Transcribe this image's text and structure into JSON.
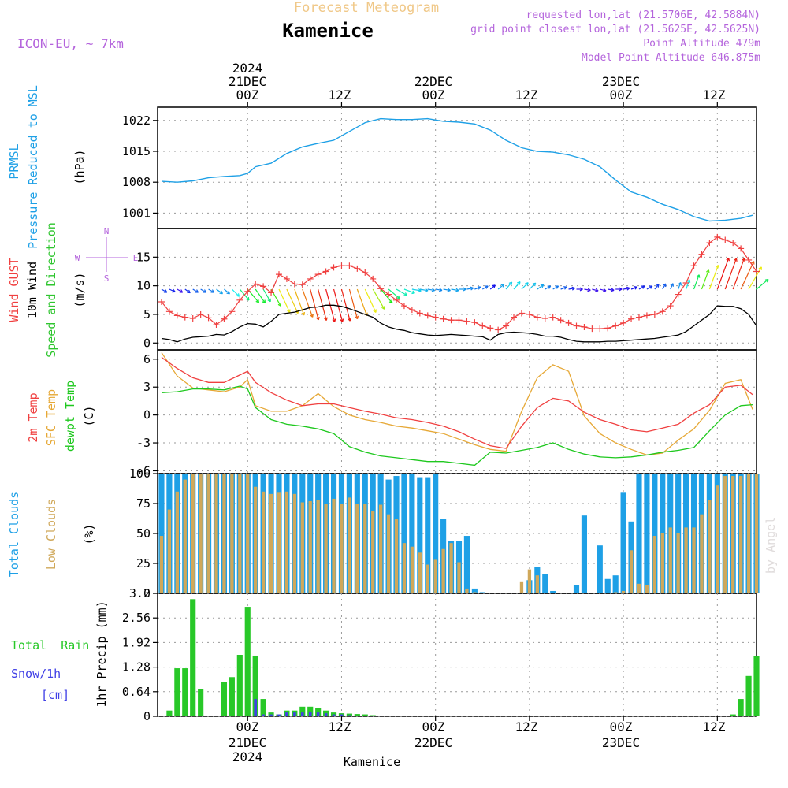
{
  "header": {
    "title_faded": "Forecast Meteogram",
    "location": "Kamenice",
    "model": "ICON-EU, ~ 7km",
    "requested": "requested lon,lat (21.5706E, 42.5884N)",
    "grid_point": "grid point closest lon,lat (21.5625E, 42.5625N)",
    "point_altitude": "Point Altitude 479m",
    "model_altitude": "Model Point Altitude 646.875m",
    "footer_location": "Kamenice",
    "watermark": "by Angel"
  },
  "time_axis": {
    "year": "2024",
    "ticks": [
      {
        "h": 0,
        "label": "00Z",
        "date": "21DEC"
      },
      {
        "h": 12,
        "label": "12Z",
        "date": ""
      },
      {
        "h": 24,
        "label": "00Z",
        "date": "22DEC"
      },
      {
        "h": 36,
        "label": "12Z",
        "date": ""
      },
      {
        "h": 48,
        "label": "00Z",
        "date": "23DEC"
      },
      {
        "h": 60,
        "label": "12Z",
        "date": ""
      }
    ],
    "range_hours": [
      -11.5,
      65
    ]
  },
  "colors": {
    "pressure": "#1ea0e6",
    "gust": "#f04040",
    "wind": "#000000",
    "direction": "#2ec52e",
    "temp2m": "#f04040",
    "sfc_temp": "#e6a836",
    "dewpt": "#1ec81e",
    "total_clouds": "#1ea0e6",
    "low_clouds": "#d0a85a",
    "rain": "#28c828",
    "snow": "#4040e6",
    "header_purple": "#b464dc",
    "title_faded": "#f0c888"
  },
  "panels": {
    "pressure": {
      "labels": [
        "PRMSL",
        "Pressure Reduced to MSL"
      ],
      "unit": "(hPa)",
      "yticks": [
        "1001",
        "1008",
        "1015",
        "1022"
      ]
    },
    "wind": {
      "labels": [
        "Wind GUST",
        "10m Wind",
        "Speed and Direction"
      ],
      "unit": "(m/s)",
      "yticks": [
        "0",
        "5",
        "10",
        "15"
      ],
      "compass": {
        "n": "N",
        "s": "S",
        "w": "W",
        "e": "E"
      }
    },
    "temp": {
      "labels": [
        "2m Temp",
        "SFC Temp",
        "dewpt Temp"
      ],
      "unit": "(C)",
      "yticks": [
        "-6",
        "-3",
        "0",
        "3",
        "6"
      ]
    },
    "clouds": {
      "labels": [
        "Total Clouds",
        "Low Clouds"
      ],
      "unit": "(%)",
      "yticks": [
        "0",
        "25",
        "50",
        "75",
        "100"
      ]
    },
    "precip": {
      "labels": [
        "Total  Rain",
        "Snow/1h",
        "[cm]"
      ],
      "unit": "1hr Precip (mm)",
      "yticks": [
        "0",
        "0.64",
        "1.28",
        "1.92",
        "2.56",
        "3.2"
      ]
    }
  },
  "chart_data": [
    {
      "type": "line",
      "title": "PRMSL Pressure Reduced to MSL",
      "ylabel": "(hPa)",
      "ylim": [
        997.5,
        1025
      ],
      "x_hours": [
        -11,
        -9,
        -7,
        -5,
        -3,
        -1,
        0,
        1,
        3,
        5,
        7,
        9,
        11,
        13,
        15,
        17,
        19,
        21,
        23,
        25,
        27,
        29,
        31,
        33,
        35,
        37,
        39,
        41,
        43,
        45,
        47,
        49,
        51,
        53,
        55,
        57,
        59,
        61,
        63,
        64.5
      ],
      "series": [
        {
          "name": "PRMSL",
          "values": [
            1008.2,
            1008.0,
            1008.3,
            1009.0,
            1009.3,
            1009.5,
            1010.0,
            1011.5,
            1012.3,
            1014.5,
            1016.0,
            1016.8,
            1017.5,
            1019.5,
            1021.5,
            1022.4,
            1022.2,
            1022.2,
            1022.4,
            1021.8,
            1021.6,
            1021.2,
            1019.8,
            1017.5,
            1015.8,
            1015.0,
            1014.8,
            1014.2,
            1013.2,
            1011.5,
            1008.5,
            1005.8,
            1004.6,
            1003.0,
            1001.8,
            1000.2,
            999.2,
            999.4,
            999.8,
            1000.5
          ]
        }
      ]
    },
    {
      "type": "line",
      "title": "Wind GUST / 10m Wind Speed and Direction",
      "ylabel": "(m/s)",
      "ylim": [
        -1.2,
        20
      ],
      "x_hours": [
        -11,
        -10,
        -9,
        -8,
        -7,
        -6,
        -5,
        -4,
        -3,
        -2,
        -1,
        0,
        1,
        2,
        3,
        4,
        5,
        6,
        7,
        8,
        9,
        10,
        11,
        12,
        13,
        14,
        15,
        16,
        17,
        18,
        19,
        20,
        21,
        22,
        23,
        24,
        25,
        26,
        27,
        28,
        29,
        30,
        31,
        32,
        33,
        34,
        35,
        36,
        37,
        38,
        39,
        40,
        41,
        42,
        43,
        44,
        45,
        46,
        47,
        48,
        49,
        50,
        51,
        52,
        53,
        54,
        55,
        56,
        57,
        58,
        59,
        60,
        61,
        62,
        63,
        64,
        65
      ],
      "series": [
        {
          "name": "Wind GUST",
          "values": [
            7.2,
            5.5,
            4.8,
            4.5,
            4.3,
            5.0,
            4.4,
            3.2,
            4.2,
            5.5,
            7.5,
            9.0,
            10.3,
            9.9,
            8.8,
            12.0,
            11.2,
            10.3,
            10.2,
            11.2,
            12.0,
            12.5,
            13.2,
            13.5,
            13.5,
            13.0,
            12.3,
            11.2,
            9.5,
            8.5,
            7.5,
            6.5,
            5.8,
            5.2,
            4.8,
            4.5,
            4.2,
            4.0,
            4.0,
            3.8,
            3.6,
            3.0,
            2.6,
            2.3,
            3.0,
            4.5,
            5.2,
            5.0,
            4.5,
            4.3,
            4.5,
            4.0,
            3.5,
            3.0,
            2.8,
            2.5,
            2.5,
            2.6,
            3.0,
            3.5,
            4.2,
            4.5,
            4.8,
            5.0,
            5.5,
            6.5,
            8.5,
            10.5,
            13.5,
            15.5,
            17.5,
            18.5,
            18.0,
            17.5,
            16.5,
            14.5,
            12.5
          ]
        },
        {
          "name": "10m Wind",
          "values": [
            0.8,
            0.6,
            0.2,
            0.7,
            1.0,
            1.1,
            1.2,
            1.5,
            1.4,
            2.0,
            2.8,
            3.4,
            3.3,
            2.8,
            3.8,
            5.0,
            5.2,
            5.4,
            5.8,
            6.2,
            6.3,
            6.6,
            6.6,
            6.4,
            6.0,
            5.5,
            5.0,
            4.5,
            3.5,
            2.8,
            2.4,
            2.2,
            1.8,
            1.6,
            1.4,
            1.3,
            1.4,
            1.5,
            1.4,
            1.3,
            1.2,
            1.1,
            0.5,
            1.5,
            1.8,
            1.9,
            1.8,
            1.7,
            1.5,
            1.2,
            1.2,
            1.0,
            0.6,
            0.3,
            0.2,
            0.2,
            0.2,
            0.3,
            0.3,
            0.4,
            0.5,
            0.6,
            0.7,
            0.8,
            1.0,
            1.2,
            1.4,
            2.0,
            3.0,
            4.0,
            5.0,
            6.5,
            6.4,
            6.4,
            6.0,
            5.0,
            3.0
          ]
        },
        {
          "name": "Speed and Direction",
          "direction_deg": [
            300,
            295,
            300,
            305,
            300,
            300,
            300,
            305,
            310,
            315,
            320,
            320,
            325,
            330,
            330,
            335,
            335,
            340,
            340,
            345,
            345,
            345,
            345,
            345,
            345,
            340,
            335,
            330,
            320,
            310,
            300,
            290,
            280,
            280,
            280,
            280,
            280,
            280,
            270,
            260,
            250,
            240,
            230,
            230,
            220,
            220,
            225,
            225,
            235,
            240,
            240,
            250,
            260,
            270,
            280,
            285,
            285,
            280,
            270,
            260,
            250,
            240,
            240,
            220,
            210,
            205,
            200,
            200,
            200,
            200,
            200,
            200,
            200,
            200,
            205,
            210,
            230
          ]
        }
      ]
    },
    {
      "type": "line",
      "title": "2m Temp / SFC Temp / dewpt Temp",
      "ylabel": "(C)",
      "ylim": [
        -6.3,
        7
      ],
      "x_hours": [
        -11,
        -9,
        -7,
        -5,
        -3,
        -1,
        0,
        1,
        3,
        5,
        7,
        9,
        11,
        13,
        15,
        17,
        19,
        21,
        23,
        25,
        27,
        29,
        31,
        33,
        35,
        37,
        39,
        41,
        43,
        45,
        47,
        49,
        51,
        53,
        55,
        57,
        59,
        61,
        63,
        64.5
      ],
      "series": [
        {
          "name": "2m Temp",
          "values": [
            6.2,
            5.0,
            4.0,
            3.5,
            3.5,
            4.3,
            4.7,
            3.5,
            2.4,
            1.6,
            1.0,
            1.2,
            1.2,
            0.8,
            0.4,
            0.1,
            -0.3,
            -0.5,
            -0.8,
            -1.2,
            -1.8,
            -2.6,
            -3.3,
            -3.6,
            -1.2,
            0.8,
            1.8,
            1.5,
            0.3,
            -0.5,
            -1.0,
            -1.6,
            -1.8,
            -1.4,
            -1.0,
            0.2,
            1.1,
            3.0,
            3.2,
            2.2
          ]
        },
        {
          "name": "SFC Temp",
          "values": [
            6.7,
            4.2,
            2.9,
            2.7,
            2.5,
            3.0,
            3.8,
            1.0,
            0.4,
            0.4,
            1.0,
            2.3,
            0.9,
            0.0,
            -0.5,
            -0.8,
            -1.2,
            -1.4,
            -1.7,
            -2.0,
            -2.6,
            -3.2,
            -3.7,
            -3.9,
            0.4,
            4.0,
            5.4,
            4.7,
            -0.1,
            -2.0,
            -3.0,
            -3.7,
            -4.3,
            -4.1,
            -2.7,
            -1.5,
            0.5,
            3.4,
            3.8,
            0.6
          ]
        },
        {
          "name": "dewpt Temp",
          "values": [
            2.4,
            2.5,
            2.8,
            2.8,
            2.7,
            3.1,
            2.8,
            0.8,
            -0.5,
            -1.0,
            -1.2,
            -1.5,
            -2.0,
            -3.4,
            -4.0,
            -4.4,
            -4.6,
            -4.8,
            -5.0,
            -5.0,
            -5.2,
            -5.4,
            -4.0,
            -4.1,
            -3.8,
            -3.5,
            -3.0,
            -3.7,
            -4.2,
            -4.5,
            -4.6,
            -4.5,
            -4.3,
            -4.0,
            -3.8,
            -3.5,
            -1.7,
            0.0,
            1.0,
            1.1
          ]
        }
      ]
    },
    {
      "type": "bar",
      "title": "Total Clouds / Low Clouds",
      "ylabel": "(%)",
      "ylim": [
        0,
        100
      ],
      "x_hours": [
        -11,
        -10,
        -9,
        -8,
        -7,
        -6,
        -5,
        -4,
        -3,
        -2,
        -1,
        0,
        1,
        2,
        3,
        4,
        5,
        6,
        7,
        8,
        9,
        10,
        11,
        12,
        13,
        14,
        15,
        16,
        17,
        18,
        19,
        20,
        21,
        22,
        23,
        24,
        25,
        26,
        27,
        28,
        29,
        30,
        31,
        32,
        33,
        34,
        35,
        36,
        37,
        38,
        39,
        40,
        41,
        42,
        43,
        44,
        45,
        46,
        47,
        48,
        49,
        50,
        51,
        52,
        53,
        54,
        55,
        56,
        57,
        58,
        59,
        60,
        61,
        62,
        63,
        64,
        65
      ],
      "series": [
        {
          "name": "Total Clouds",
          "values": [
            100,
            100,
            100,
            100,
            100,
            100,
            100,
            100,
            100,
            100,
            100,
            100,
            100,
            100,
            100,
            100,
            100,
            100,
            100,
            100,
            100,
            100,
            100,
            100,
            100,
            100,
            100,
            100,
            100,
            95,
            98,
            100,
            100,
            97,
            97,
            100,
            62,
            44,
            44,
            48,
            4,
            1,
            0,
            0,
            0,
            0,
            0,
            11,
            22,
            16,
            2,
            0,
            0,
            7,
            65,
            0,
            40,
            12,
            15,
            84,
            60,
            100,
            100,
            100,
            100,
            100,
            100,
            100,
            100,
            100,
            100,
            100,
            100,
            100,
            100,
            100,
            100
          ]
        },
        {
          "name": "Low Clouds",
          "values": [
            48,
            70,
            85,
            95,
            100,
            100,
            100,
            100,
            100,
            100,
            100,
            100,
            89,
            85,
            83,
            84,
            85,
            83,
            76,
            77,
            78,
            75,
            79,
            75,
            80,
            75,
            75,
            69,
            74,
            66,
            62,
            42,
            39,
            34,
            24,
            28,
            37,
            42,
            26,
            4,
            1,
            0,
            0,
            0,
            0,
            0,
            10,
            20,
            15,
            0,
            0,
            0,
            0,
            0,
            0,
            0,
            0,
            0,
            1,
            2,
            36,
            8,
            7,
            48,
            50,
            55,
            50,
            55,
            55,
            66,
            78,
            90,
            98,
            98,
            98,
            100,
            100
          ]
        }
      ]
    },
    {
      "type": "bar",
      "title": "Total Rain / Snow/1h",
      "ylabel": "1hr Precip (mm)",
      "ylim": [
        0,
        3.2
      ],
      "x_hours": [
        -10,
        -9,
        -8,
        -7,
        -6,
        -5,
        -4,
        -3,
        -2,
        -1,
        0,
        1,
        2,
        3,
        4,
        5,
        6,
        7,
        8,
        9,
        10,
        11,
        12,
        13,
        14,
        15,
        16,
        62,
        63,
        64,
        65
      ],
      "series": [
        {
          "name": "Total Rain",
          "values": [
            0.15,
            1.25,
            1.25,
            3.05,
            0.7,
            0.0,
            0.0,
            0.9,
            1.02,
            1.6,
            2.85,
            1.58,
            0.45,
            0.1,
            0.05,
            0.15,
            0.15,
            0.25,
            0.25,
            0.22,
            0.15,
            0.1,
            0.08,
            0.07,
            0.06,
            0.05,
            0.03,
            0.05,
            0.45,
            1.05,
            1.57
          ]
        },
        {
          "name": "Snow/1h",
          "values": [
            0,
            0,
            0,
            0,
            0,
            0,
            0,
            0,
            0,
            0,
            0,
            0.45,
            0.05,
            0.05,
            0.05,
            0.1,
            0.1,
            0.1,
            0.12,
            0.1,
            0.08,
            0.05,
            0.05,
            0.03,
            0.02,
            0.02,
            0.01,
            0,
            0,
            0,
            0
          ]
        }
      ]
    }
  ]
}
